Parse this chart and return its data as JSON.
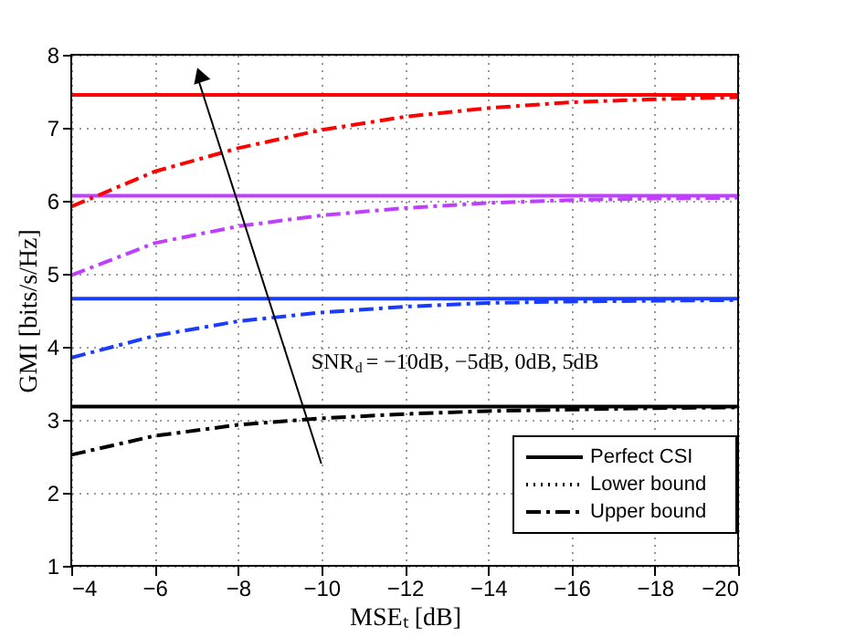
{
  "chart_data": {
    "type": "line",
    "xlabel": "MSEₜ [dB]",
    "ylabel": "GMI [bits/s/Hz]",
    "x": [
      -4,
      -6,
      -8,
      -10,
      -12,
      -14,
      -16,
      -18,
      -20
    ],
    "xlim": [
      -4,
      -20
    ],
    "xticks": [
      -4,
      -6,
      -8,
      -10,
      -12,
      -14,
      -16,
      -18,
      -20
    ],
    "ylim": [
      1,
      8
    ],
    "yticks": [
      1,
      2,
      3,
      4,
      5,
      6,
      7,
      8
    ],
    "grid": true,
    "legend": "bottom right",
    "marker": "none",
    "annotations": [
      "SNR$_{d}$ = −10dB, −5dB, 0dB, 5dB"
    ],
    "series": [
      {
        "color": "#ff0000",
        "line_style": "solid",
        "values": [
          7.45,
          7.45,
          7.45,
          7.45,
          7.45,
          7.45,
          7.45,
          7.45,
          7.45
        ]
      },
      {
        "color": "#bf3fff",
        "line_style": "solid",
        "values": [
          6.07,
          6.07,
          6.07,
          6.07,
          6.07,
          6.07,
          6.07,
          6.07,
          6.07
        ]
      },
      {
        "color": "#1a3cff",
        "line_style": "solid",
        "values": [
          4.66,
          4.66,
          4.66,
          4.66,
          4.66,
          4.66,
          4.66,
          4.66,
          4.66
        ]
      },
      {
        "name": "Perfect CSI",
        "color": "#000000",
        "line_style": "solid",
        "values": [
          3.18,
          3.18,
          3.18,
          3.18,
          3.18,
          3.18,
          3.18,
          3.18,
          3.18
        ]
      },
      {
        "name": "Lower bound",
        "color": "#000000",
        "line_style": "dotted",
        "values": [
          null,
          null,
          null,
          null,
          null,
          null,
          null,
          null,
          null
        ]
      },
      {
        "color": "#ff0000",
        "line_style": "dashdot",
        "values": [
          5.92,
          6.4,
          6.72,
          6.97,
          7.15,
          7.27,
          7.35,
          7.39,
          7.42
        ]
      },
      {
        "color": "#bf3fff",
        "line_style": "dashdot",
        "values": [
          4.98,
          5.42,
          5.65,
          5.8,
          5.9,
          5.97,
          6.01,
          6.03,
          6.04
        ]
      },
      {
        "color": "#1a3cff",
        "line_style": "dashdot",
        "values": [
          3.85,
          4.15,
          4.35,
          4.47,
          4.55,
          4.6,
          4.62,
          4.63,
          4.64
        ]
      },
      {
        "name": "Upper bound",
        "color": "#000000",
        "line_style": "dashdot",
        "values": [
          2.52,
          2.78,
          2.93,
          3.02,
          3.08,
          3.12,
          3.14,
          3.16,
          3.17
        ]
      }
    ]
  }
}
